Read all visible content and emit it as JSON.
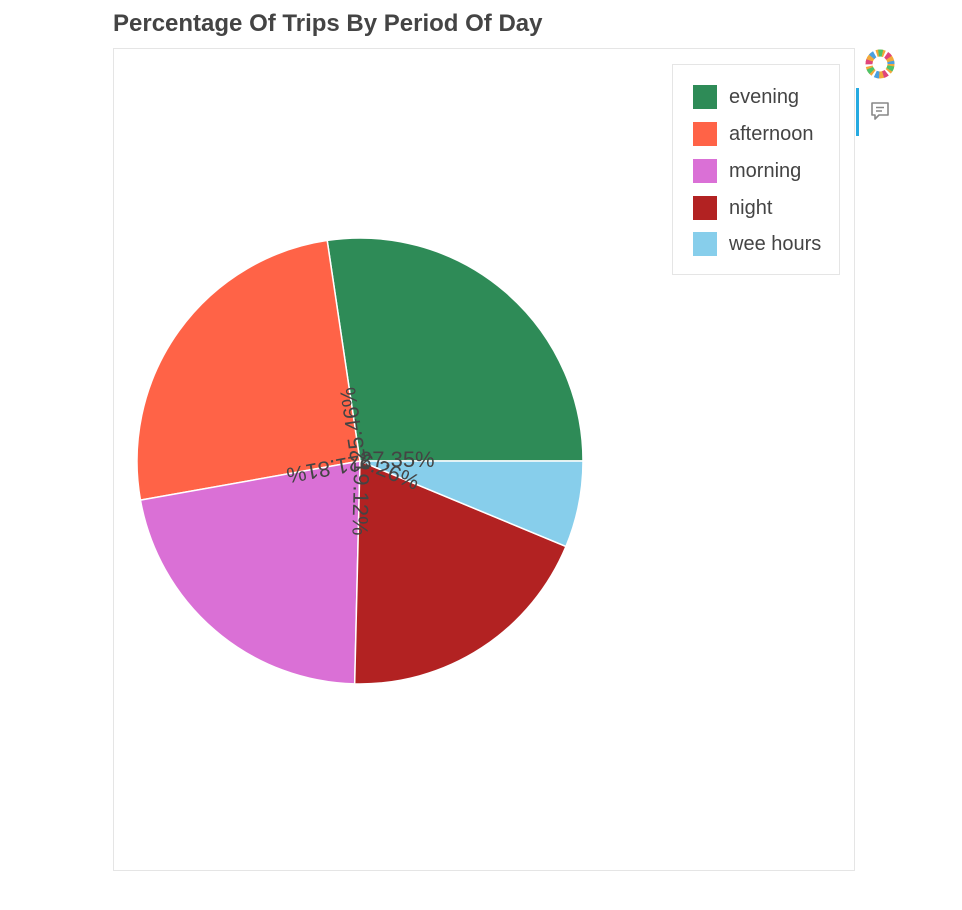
{
  "title": "Percentage Of Trips By Period Of Day",
  "chart_data": {
    "type": "pie",
    "categories": [
      "evening",
      "afternoon",
      "morning",
      "night",
      "wee hours"
    ],
    "values": [
      27.35,
      25.46,
      21.81,
      19.12,
      6.26
    ],
    "data_labels": [
      "27.35%",
      "25.46%",
      "21.81%",
      "19.12%",
      "6.26%"
    ],
    "colors": [
      "#2e8b57",
      "#ff6347",
      "#da70d6",
      "#b22222",
      "#87ceeb"
    ],
    "legend_position": "top-right",
    "grid": false
  },
  "legend": {
    "items": [
      {
        "label": "evening",
        "color": "#2e8b57"
      },
      {
        "label": "afternoon",
        "color": "#ff6347"
      },
      {
        "label": "morning",
        "color": "#da70d6"
      },
      {
        "label": "night",
        "color": "#b22222"
      },
      {
        "label": "wee hours",
        "color": "#87ceeb"
      }
    ]
  },
  "toolbar": {
    "logo_icon": "bokeh-logo-icon",
    "hover_icon": "hover-tool-icon"
  }
}
